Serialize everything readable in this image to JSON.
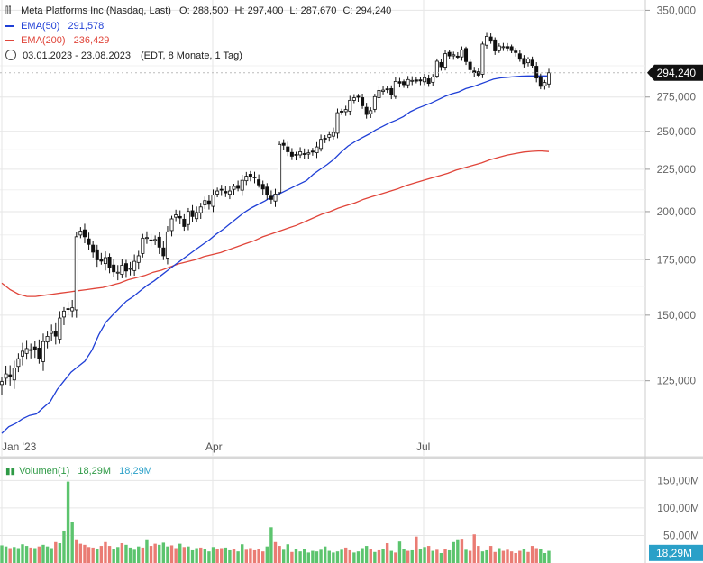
{
  "header": {
    "symbol": "Meta Platforms Inc (Nasdaq, Last)",
    "o": "O: 288,500",
    "h": "H: 297,400",
    "l": "L: 287,670",
    "c": "C: 294,240",
    "ema50_label": "EMA(50)",
    "ema50_value": "291,578",
    "ema200_label": "EMA(200)",
    "ema200_value": "236,429",
    "range": "03.01.2023 - 23.08.2023",
    "range_info": "(EDT, 8 Monate, 1 Tag)",
    "volume_label": "Volumen(1)",
    "volume_value_a": "18,29M",
    "volume_value_b": "18,29M"
  },
  "colors": {
    "ema50": "#1f3fd6",
    "ema200": "#e0453a",
    "vol_up": "#5cc46e",
    "vol_down": "#ea7c74",
    "candle": "#111111",
    "grid": "#e6e6e6"
  },
  "chart_data": [
    {
      "type": "candlestick",
      "y_axis_ticks": [
        "350,000",
        "275,000",
        "250,000",
        "225,000",
        "200,000",
        "175,000",
        "150,000",
        "125,000"
      ],
      "y_tick_values": [
        350,
        275,
        250,
        225,
        200,
        175,
        150,
        125
      ],
      "ylim": [
        103,
        353
      ],
      "x_ticks": [
        "Jan '23",
        "Apr",
        "Jul"
      ],
      "last_price_label": "294,240",
      "close": [
        124.7,
        127.4,
        126.4,
        129.5,
        132.9,
        135.7,
        136.7,
        136.3,
        136.4,
        133.0,
        139.4,
        141.4,
        143.4,
        141.5,
        148.8,
        151.7,
        152.5,
        153.1,
        186.5,
        189.5,
        186.5,
        182.6,
        178.7,
        174.9,
        174.3,
        176.0,
        171.3,
        169.2,
        169.0,
        172.3,
        169.6,
        170.8,
        174.2,
        176.9,
        185.8,
        186.1,
        184.5,
        185.1,
        181.2,
        176.9,
        189.1,
        196.0,
        198.2,
        196.5,
        191.9,
        200.1,
        197.3,
        199.5,
        202.6,
        206.2,
        204.1,
        209.5,
        211.8,
        212.3,
        210.7,
        211.8,
        214.5,
        213.4,
        218.2,
        220.7,
        220.3,
        219.7,
        215.4,
        213.0,
        209.4,
        206.9,
        210.0,
        241.1,
        240.5,
        236.2,
        233.3,
        234.0,
        236.2,
        234.5,
        235.5,
        236.0,
        239.4,
        244.5,
        245.1,
        247.6,
        249.3,
        263.3,
        263.7,
        265.6,
        272.5,
        274.4,
        274.8,
        268.4,
        262.0,
        264.8,
        275.3,
        280.1,
        280.3,
        281.0,
        276.6,
        287.2,
        285.8,
        284.6,
        288.7,
        288.0,
        287.4,
        287.6,
        290.2,
        285.6,
        290.8,
        303.8,
        299.2,
        310.2,
        308.3,
        309.3,
        307.2,
        313.6,
        303.5,
        296.7,
        294.3,
        292.2,
        318.6,
        325.5,
        321.2,
        312.6,
        316.9,
        316.3,
        315.1,
        312.9,
        311.2,
        305.5,
        301.6,
        305.6,
        300.3,
        289.9,
        283.3,
        286.3,
        294.2
      ],
      "ema50": [
        108.0,
        110.0,
        111.0,
        112.5,
        113.5,
        114.0,
        116.0,
        118.0,
        122.0,
        125.0,
        128.0,
        130.0,
        132.0,
        136.0,
        142.0,
        147.0,
        150.0,
        153.0,
        156.0,
        158.0,
        160.5,
        163.0,
        165.0,
        167.5,
        170.0,
        172.5,
        175.0,
        177.5,
        180.0,
        182.5,
        185.0,
        188.0,
        190.5,
        193.5,
        196.5,
        199.5,
        202.0,
        204.0,
        206.0,
        208.5,
        210.0,
        212.0,
        214.0,
        216.0,
        218.0,
        222.0,
        225.0,
        228.0,
        231.5,
        236.0,
        240.0,
        243.0,
        245.5,
        248.0,
        251.0,
        253.5,
        256.0,
        258.0,
        260.5,
        264.0,
        266.5,
        268.5,
        270.5,
        273.0,
        275.5,
        277.5,
        279.0,
        281.5,
        283.0,
        285.0,
        287.0,
        289.0,
        290.0,
        290.5,
        291.0,
        291.5,
        291.6,
        291.6,
        291.6,
        291.6
      ],
      "ema200": [
        164.0,
        161.0,
        159.0,
        158.0,
        158.0,
        158.5,
        159.0,
        159.5,
        160.0,
        160.5,
        161.0,
        161.5,
        162.0,
        163.0,
        164.0,
        165.5,
        166.5,
        167.5,
        169.0,
        170.0,
        171.5,
        173.0,
        174.0,
        175.0,
        176.5,
        177.5,
        178.5,
        180.0,
        181.5,
        183.0,
        184.5,
        186.5,
        188.0,
        189.5,
        191.0,
        192.5,
        194.5,
        196.5,
        198.5,
        200.0,
        202.0,
        203.5,
        205.0,
        207.0,
        208.5,
        210.0,
        211.5,
        213.0,
        215.0,
        216.5,
        218.0,
        219.5,
        221.0,
        222.5,
        224.5,
        226.0,
        227.5,
        229.0,
        231.0,
        232.5,
        234.0,
        235.0,
        236.0,
        236.5,
        236.8,
        236.4
      ],
      "series": [
        {
          "name": "Meta Platforms Inc (Nasdaq, Last)"
        },
        {
          "name": "EMA(50)"
        },
        {
          "name": "EMA(200)"
        }
      ]
    },
    {
      "type": "bar",
      "y_axis_ticks": [
        "150,00M",
        "100,00M",
        "50,00M"
      ],
      "y_tick_values": [
        150,
        100,
        50
      ],
      "ylim": [
        0,
        185
      ],
      "last_volume_label": "18,29M",
      "values": [
        32,
        30,
        27,
        29,
        27,
        34,
        31,
        28,
        27,
        30,
        33,
        30,
        27,
        38,
        36,
        59,
        148,
        75,
        43,
        35,
        33,
        29,
        28,
        25,
        31,
        38,
        31,
        26,
        29,
        36,
        33,
        28,
        24,
        30,
        28,
        43,
        31,
        35,
        33,
        37,
        30,
        32,
        27,
        35,
        29,
        30,
        23,
        27,
        28,
        26,
        21,
        29,
        25,
        27,
        28,
        23,
        26,
        21,
        34,
        24,
        27,
        23,
        26,
        21,
        30,
        65,
        38,
        31,
        24,
        34,
        20,
        26,
        21,
        25,
        19,
        22,
        21,
        24,
        30,
        22,
        19,
        21,
        24,
        28,
        23,
        19,
        21,
        27,
        31,
        25,
        20,
        23,
        26,
        36,
        22,
        19,
        39,
        26,
        22,
        23,
        48,
        25,
        29,
        31,
        22,
        24,
        18,
        26,
        23,
        38,
        43,
        44,
        24,
        22,
        52,
        31,
        21,
        23,
        31,
        20,
        27,
        22,
        24,
        21,
        18,
        22,
        26,
        20,
        31,
        27,
        26,
        18,
        22
      ],
      "up": [
        1,
        1,
        0,
        1,
        1,
        1,
        1,
        0,
        1,
        0,
        1,
        1,
        1,
        0,
        1,
        1,
        1,
        1,
        0,
        0,
        0,
        0,
        0,
        1,
        0,
        0,
        0,
        1,
        1,
        0,
        1,
        1,
        1,
        1,
        0,
        1,
        0,
        0,
        1,
        1,
        1,
        0,
        0,
        1,
        0,
        1,
        1,
        1,
        0,
        1,
        1,
        1,
        0,
        0,
        1,
        1,
        0,
        1,
        1,
        0,
        0,
        0,
        0,
        0,
        1,
        1,
        0,
        0,
        1,
        1,
        0,
        1,
        1,
        1,
        1,
        1,
        1,
        1,
        1,
        1,
        1,
        1,
        1,
        0,
        0,
        1,
        1,
        1,
        1,
        0,
        1,
        0,
        1,
        0,
        1,
        0,
        1,
        1,
        0,
        1,
        0,
        1,
        1,
        0,
        1,
        0,
        1,
        0,
        1,
        1,
        1,
        0,
        1,
        0,
        0,
        0,
        1,
        1,
        0,
        0,
        1,
        0,
        0,
        0,
        0,
        0,
        1,
        0,
        0,
        0,
        1,
        1,
        1
      ]
    }
  ]
}
